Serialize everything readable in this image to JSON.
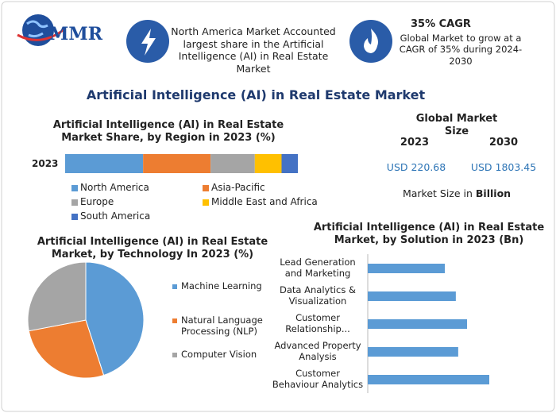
{
  "header": {
    "logo": "MMR",
    "card1": "North America Market Accounted largest share in the Artificial Intelligence (AI) in Real Estate Market",
    "card2_title": "35% CAGR",
    "card2_text": "Global Market to grow at a CAGR of 35% during 2024-2030"
  },
  "title": "Artificial Intelligence (AI) in Real Estate Market",
  "market_size": {
    "title": "Global Market Size",
    "years": [
      "2023",
      "2030"
    ],
    "values": [
      "USD 220.68",
      "USD 1803.45"
    ],
    "note": "Market Size in",
    "unit": "Billion"
  },
  "chart_data": [
    {
      "type": "stacked-bar",
      "title": "Artificial Intelligence (AI) in Real Estate\nMarket Share, by Region in 2023 (%)",
      "categories": [
        "2023"
      ],
      "series": [
        {
          "name": "North America",
          "color": "#5b9bd5",
          "values": [
            33.5
          ]
        },
        {
          "name": "Asia-Pacific",
          "color": "#ed7d31",
          "values": [
            29
          ]
        },
        {
          "name": "Europe",
          "color": "#a5a5a5",
          "values": [
            19
          ]
        },
        {
          "name": "Middle East and Africa",
          "color": "#ffc000",
          "values": [
            11.5
          ]
        },
        {
          "name": "South America",
          "color": "#4472c4",
          "values": [
            7
          ]
        }
      ]
    },
    {
      "type": "pie",
      "title": "Artificial Intelligence (AI) in Real Estate\nMarket, by Technology In 2023 (%)",
      "categories": [
        "Machine Learning",
        "Natural Language\nProcessing (NLP)",
        "Computer Vision"
      ],
      "values": [
        45,
        27,
        28
      ],
      "colors": [
        "#5b9bd5",
        "#ed7d31",
        "#a5a5a5"
      ]
    },
    {
      "type": "hbar",
      "title": "Artificial Intelligence (AI) in Real Estate\nMarket, by Solution in 2023 (Bn)",
      "categories": [
        "Lead Generation\nand Marketing",
        "Data Analytics &\nVisualization",
        "Customer\nRelationship...",
        "Advanced Property\nAnalysis",
        "Customer\nBehaviour Analytics"
      ],
      "values": [
        35.7,
        40.8,
        46,
        41.9,
        56.3
      ],
      "color": "#5b9bd5"
    }
  ]
}
